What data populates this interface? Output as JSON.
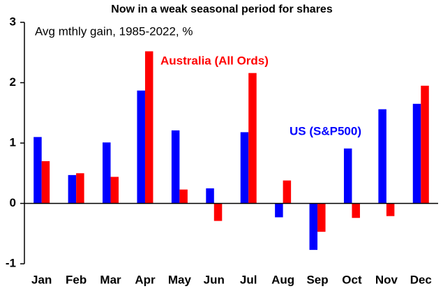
{
  "chart_data": {
    "type": "bar",
    "title": "Now in a weak seasonal period for shares",
    "subtitle": "Avg mthly gain, 1985-2022, %",
    "categories": [
      "Jan",
      "Feb",
      "Mar",
      "Apr",
      "May",
      "Jun",
      "Jul",
      "Aug",
      "Sep",
      "Oct",
      "Nov",
      "Dec"
    ],
    "series": [
      {
        "name": "US (S&P500)",
        "color": "#0000ff",
        "values": [
          1.1,
          0.47,
          1.01,
          1.87,
          1.21,
          0.25,
          1.18,
          -0.23,
          -0.77,
          0.91,
          1.56,
          1.65
        ]
      },
      {
        "name": "Australia (All Ords)",
        "color": "#ff0000",
        "values": [
          0.7,
          0.5,
          0.44,
          2.52,
          0.23,
          -0.29,
          2.16,
          0.38,
          -0.47,
          -0.24,
          -0.21,
          1.95
        ]
      }
    ],
    "ylim": [
      -1,
      3
    ],
    "yticks": [
      -1,
      0,
      1,
      2,
      3
    ],
    "grid": false
  }
}
